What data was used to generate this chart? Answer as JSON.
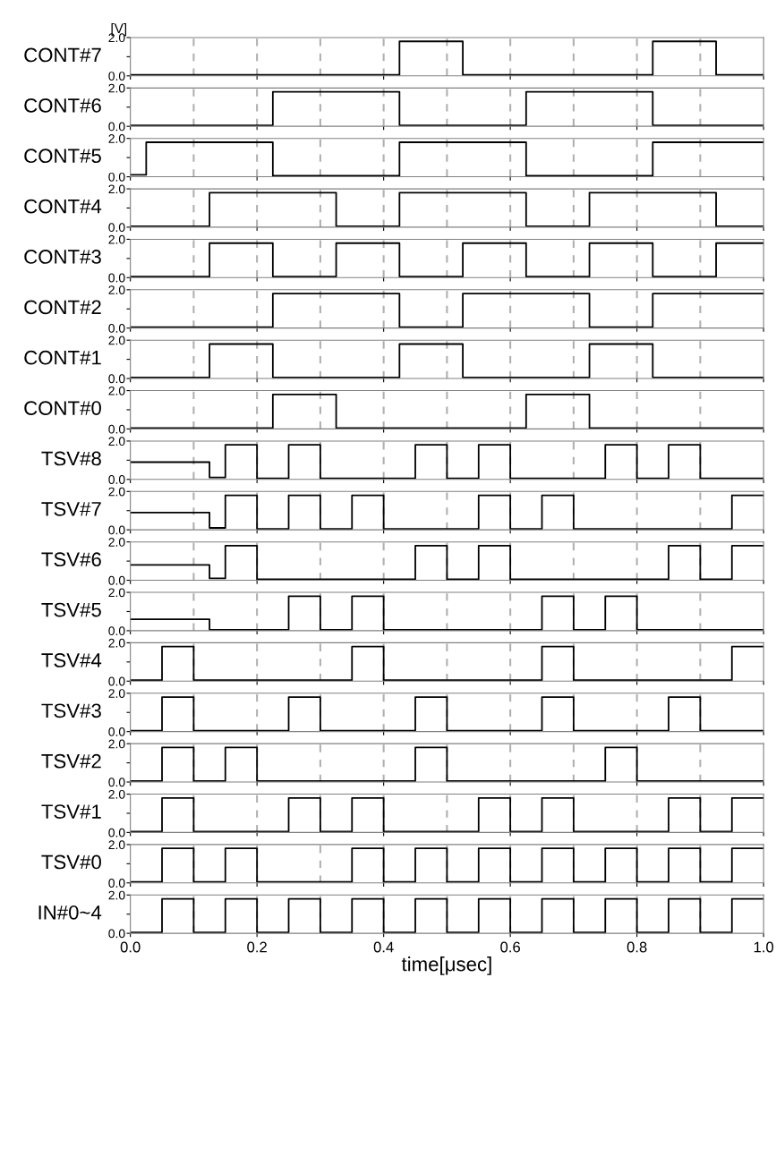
{
  "chart_data": [
    {
      "type": "step",
      "ylabel": "CONT#7",
      "annotations": [
        "[V]"
      ],
      "x": [
        0,
        0.425,
        0.525,
        0.825,
        0.925,
        1.0
      ],
      "values": [
        0.05,
        1.8,
        0.05,
        1.8,
        0.05,
        0.05
      ],
      "color": "#000000",
      "xlim": [
        0,
        1
      ],
      "xticks": [
        0,
        0.2,
        0.4,
        0.6,
        0.8,
        1.0
      ],
      "ylim": [
        0,
        2
      ],
      "yticks": [
        {
          "value": 0,
          "label": "0.0"
        },
        {
          "value": 1,
          "label": null
        },
        {
          "value": 2,
          "label": "2.0"
        }
      ],
      "tick_labels": "y",
      "ref_lines": [
        {
          "axis": "x",
          "value": 0.1,
          "color": "#b0b0b0",
          "line_style": "dashed"
        },
        {
          "axis": "x",
          "value": 0.2,
          "color": "#b0b0b0",
          "line_style": "dashed"
        },
        {
          "axis": "x",
          "value": 0.3,
          "color": "#b0b0b0",
          "line_style": "dashed"
        },
        {
          "axis": "x",
          "value": 0.4,
          "color": "#b0b0b0",
          "line_style": "dashed"
        },
        {
          "axis": "x",
          "value": 0.5,
          "color": "#b0b0b0",
          "line_style": "dashed"
        },
        {
          "axis": "x",
          "value": 0.6,
          "color": "#b0b0b0",
          "line_style": "dashed"
        },
        {
          "axis": "x",
          "value": 0.7,
          "color": "#b0b0b0",
          "line_style": "dashed"
        },
        {
          "axis": "x",
          "value": 0.8,
          "color": "#b0b0b0",
          "line_style": "dashed"
        },
        {
          "axis": "x",
          "value": 0.9,
          "color": "#b0b0b0",
          "line_style": "dashed"
        }
      ]
    },
    {
      "type": "step",
      "ylabel": "CONT#6",
      "x": [
        0,
        0.225,
        0.425,
        0.625,
        0.825,
        1.0
      ],
      "values": [
        0.05,
        1.8,
        0.05,
        1.8,
        0.05,
        0.05
      ],
      "color": "#000000",
      "xlim": [
        0,
        1
      ],
      "xticks": [
        0,
        0.2,
        0.4,
        0.6,
        0.8,
        1.0
      ],
      "ylim": [
        0,
        2
      ],
      "yticks": [
        {
          "value": 0,
          "label": "0.0"
        },
        {
          "value": 1,
          "label": null
        },
        {
          "value": 2,
          "label": "2.0"
        }
      ],
      "tick_labels": "y",
      "ref_lines": [
        {
          "axis": "x",
          "value": 0.1,
          "color": "#b0b0b0",
          "line_style": "dashed"
        },
        {
          "axis": "x",
          "value": 0.2,
          "color": "#b0b0b0",
          "line_style": "dashed"
        },
        {
          "axis": "x",
          "value": 0.3,
          "color": "#b0b0b0",
          "line_style": "dashed"
        },
        {
          "axis": "x",
          "value": 0.4,
          "color": "#b0b0b0",
          "line_style": "dashed"
        },
        {
          "axis": "x",
          "value": 0.5,
          "color": "#b0b0b0",
          "line_style": "dashed"
        },
        {
          "axis": "x",
          "value": 0.6,
          "color": "#b0b0b0",
          "line_style": "dashed"
        },
        {
          "axis": "x",
          "value": 0.7,
          "color": "#b0b0b0",
          "line_style": "dashed"
        },
        {
          "axis": "x",
          "value": 0.8,
          "color": "#b0b0b0",
          "line_style": "dashed"
        },
        {
          "axis": "x",
          "value": 0.9,
          "color": "#b0b0b0",
          "line_style": "dashed"
        }
      ]
    },
    {
      "type": "step",
      "ylabel": "CONT#5",
      "x": [
        0,
        0.025,
        0.225,
        0.425,
        0.625,
        0.825,
        1.0
      ],
      "values": [
        0.1,
        1.8,
        0.05,
        1.8,
        0.05,
        1.8,
        1.8
      ],
      "color": "#000000",
      "xlim": [
        0,
        1
      ],
      "xticks": [
        0,
        0.2,
        0.4,
        0.6,
        0.8,
        1.0
      ],
      "ylim": [
        0,
        2
      ],
      "yticks": [
        {
          "value": 0,
          "label": "0.0"
        },
        {
          "value": 1,
          "label": null
        },
        {
          "value": 2,
          "label": "2.0"
        }
      ],
      "tick_labels": "y",
      "ref_lines": [
        {
          "axis": "x",
          "value": 0.1,
          "color": "#b0b0b0",
          "line_style": "dashed"
        },
        {
          "axis": "x",
          "value": 0.2,
          "color": "#b0b0b0",
          "line_style": "dashed"
        },
        {
          "axis": "x",
          "value": 0.3,
          "color": "#b0b0b0",
          "line_style": "dashed"
        },
        {
          "axis": "x",
          "value": 0.4,
          "color": "#b0b0b0",
          "line_style": "dashed"
        },
        {
          "axis": "x",
          "value": 0.5,
          "color": "#b0b0b0",
          "line_style": "dashed"
        },
        {
          "axis": "x",
          "value": 0.6,
          "color": "#b0b0b0",
          "line_style": "dashed"
        },
        {
          "axis": "x",
          "value": 0.7,
          "color": "#b0b0b0",
          "line_style": "dashed"
        },
        {
          "axis": "x",
          "value": 0.8,
          "color": "#b0b0b0",
          "line_style": "dashed"
        },
        {
          "axis": "x",
          "value": 0.9,
          "color": "#b0b0b0",
          "line_style": "dashed"
        }
      ]
    },
    {
      "type": "step",
      "ylabel": "CONT#4",
      "x": [
        0,
        0.125,
        0.325,
        0.425,
        0.625,
        0.725,
        0.925,
        1.0
      ],
      "values": [
        0.05,
        1.8,
        0.05,
        1.8,
        0.05,
        1.8,
        0.05,
        0.05
      ],
      "color": "#000000",
      "xlim": [
        0,
        1
      ],
      "xticks": [
        0,
        0.2,
        0.4,
        0.6,
        0.8,
        1.0
      ],
      "ylim": [
        0,
        2
      ],
      "yticks": [
        {
          "value": 0,
          "label": "0.0"
        },
        {
          "value": 1,
          "label": null
        },
        {
          "value": 2,
          "label": "2.0"
        }
      ],
      "tick_labels": "y",
      "ref_lines": [
        {
          "axis": "x",
          "value": 0.1,
          "color": "#b0b0b0",
          "line_style": "dashed"
        },
        {
          "axis": "x",
          "value": 0.2,
          "color": "#b0b0b0",
          "line_style": "dashed"
        },
        {
          "axis": "x",
          "value": 0.3,
          "color": "#b0b0b0",
          "line_style": "dashed"
        },
        {
          "axis": "x",
          "value": 0.4,
          "color": "#b0b0b0",
          "line_style": "dashed"
        },
        {
          "axis": "x",
          "value": 0.5,
          "color": "#b0b0b0",
          "line_style": "dashed"
        },
        {
          "axis": "x",
          "value": 0.6,
          "color": "#b0b0b0",
          "line_style": "dashed"
        },
        {
          "axis": "x",
          "value": 0.7,
          "color": "#b0b0b0",
          "line_style": "dashed"
        },
        {
          "axis": "x",
          "value": 0.8,
          "color": "#b0b0b0",
          "line_style": "dashed"
        },
        {
          "axis": "x",
          "value": 0.9,
          "color": "#b0b0b0",
          "line_style": "dashed"
        }
      ]
    },
    {
      "type": "step",
      "ylabel": "CONT#3",
      "x": [
        0,
        0.125,
        0.225,
        0.325,
        0.425,
        0.525,
        0.625,
        0.725,
        0.825,
        0.925,
        1.0
      ],
      "values": [
        0.05,
        1.8,
        0.05,
        1.8,
        0.05,
        1.8,
        0.05,
        1.8,
        0.05,
        1.8,
        1.8
      ],
      "color": "#000000",
      "xlim": [
        0,
        1
      ],
      "xticks": [
        0,
        0.2,
        0.4,
        0.6,
        0.8,
        1.0
      ],
      "ylim": [
        0,
        2
      ],
      "yticks": [
        {
          "value": 0,
          "label": "0.0"
        },
        {
          "value": 1,
          "label": null
        },
        {
          "value": 2,
          "label": "2.0"
        }
      ],
      "tick_labels": "y",
      "ref_lines": [
        {
          "axis": "x",
          "value": 0.1,
          "color": "#b0b0b0",
          "line_style": "dashed"
        },
        {
          "axis": "x",
          "value": 0.2,
          "color": "#b0b0b0",
          "line_style": "dashed"
        },
        {
          "axis": "x",
          "value": 0.3,
          "color": "#b0b0b0",
          "line_style": "dashed"
        },
        {
          "axis": "x",
          "value": 0.4,
          "color": "#b0b0b0",
          "line_style": "dashed"
        },
        {
          "axis": "x",
          "value": 0.5,
          "color": "#b0b0b0",
          "line_style": "dashed"
        },
        {
          "axis": "x",
          "value": 0.6,
          "color": "#b0b0b0",
          "line_style": "dashed"
        },
        {
          "axis": "x",
          "value": 0.7,
          "color": "#b0b0b0",
          "line_style": "dashed"
        },
        {
          "axis": "x",
          "value": 0.8,
          "color": "#b0b0b0",
          "line_style": "dashed"
        },
        {
          "axis": "x",
          "value": 0.9,
          "color": "#b0b0b0",
          "line_style": "dashed"
        }
      ]
    },
    {
      "type": "step",
      "ylabel": "CONT#2",
      "x": [
        0,
        0.225,
        0.425,
        0.525,
        0.725,
        0.825,
        1.0
      ],
      "values": [
        0.05,
        1.8,
        0.05,
        1.8,
        0.05,
        1.8,
        1.8
      ],
      "color": "#000000",
      "xlim": [
        0,
        1
      ],
      "xticks": [
        0,
        0.2,
        0.4,
        0.6,
        0.8,
        1.0
      ],
      "ylim": [
        0,
        2
      ],
      "yticks": [
        {
          "value": 0,
          "label": "0.0"
        },
        {
          "value": 1,
          "label": null
        },
        {
          "value": 2,
          "label": "2.0"
        }
      ],
      "tick_labels": "y",
      "ref_lines": [
        {
          "axis": "x",
          "value": 0.1,
          "color": "#b0b0b0",
          "line_style": "dashed"
        },
        {
          "axis": "x",
          "value": 0.2,
          "color": "#b0b0b0",
          "line_style": "dashed"
        },
        {
          "axis": "x",
          "value": 0.3,
          "color": "#b0b0b0",
          "line_style": "dashed"
        },
        {
          "axis": "x",
          "value": 0.4,
          "color": "#b0b0b0",
          "line_style": "dashed"
        },
        {
          "axis": "x",
          "value": 0.5,
          "color": "#b0b0b0",
          "line_style": "dashed"
        },
        {
          "axis": "x",
          "value": 0.6,
          "color": "#b0b0b0",
          "line_style": "dashed"
        },
        {
          "axis": "x",
          "value": 0.7,
          "color": "#b0b0b0",
          "line_style": "dashed"
        },
        {
          "axis": "x",
          "value": 0.8,
          "color": "#b0b0b0",
          "line_style": "dashed"
        },
        {
          "axis": "x",
          "value": 0.9,
          "color": "#b0b0b0",
          "line_style": "dashed"
        }
      ]
    },
    {
      "type": "step",
      "ylabel": "CONT#1",
      "x": [
        0,
        0.125,
        0.225,
        0.425,
        0.525,
        0.725,
        0.825,
        1.0
      ],
      "values": [
        0.05,
        1.8,
        0.05,
        1.8,
        0.05,
        1.8,
        0.05,
        0.05
      ],
      "color": "#000000",
      "xlim": [
        0,
        1
      ],
      "xticks": [
        0,
        0.2,
        0.4,
        0.6,
        0.8,
        1.0
      ],
      "ylim": [
        0,
        2
      ],
      "yticks": [
        {
          "value": 0,
          "label": "0.0"
        },
        {
          "value": 1,
          "label": null
        },
        {
          "value": 2,
          "label": "2.0"
        }
      ],
      "tick_labels": "y",
      "ref_lines": [
        {
          "axis": "x",
          "value": 0.1,
          "color": "#b0b0b0",
          "line_style": "dashed"
        },
        {
          "axis": "x",
          "value": 0.2,
          "color": "#b0b0b0",
          "line_style": "dashed"
        },
        {
          "axis": "x",
          "value": 0.3,
          "color": "#b0b0b0",
          "line_style": "dashed"
        },
        {
          "axis": "x",
          "value": 0.4,
          "color": "#b0b0b0",
          "line_style": "dashed"
        },
        {
          "axis": "x",
          "value": 0.5,
          "color": "#b0b0b0",
          "line_style": "dashed"
        },
        {
          "axis": "x",
          "value": 0.6,
          "color": "#b0b0b0",
          "line_style": "dashed"
        },
        {
          "axis": "x",
          "value": 0.7,
          "color": "#b0b0b0",
          "line_style": "dashed"
        },
        {
          "axis": "x",
          "value": 0.8,
          "color": "#b0b0b0",
          "line_style": "dashed"
        },
        {
          "axis": "x",
          "value": 0.9,
          "color": "#b0b0b0",
          "line_style": "dashed"
        }
      ]
    },
    {
      "type": "step",
      "ylabel": "CONT#0",
      "x": [
        0,
        0.225,
        0.325,
        0.625,
        0.725,
        1.0
      ],
      "values": [
        0.05,
        1.8,
        0.05,
        1.8,
        0.05,
        0.05
      ],
      "color": "#000000",
      "xlim": [
        0,
        1
      ],
      "xticks": [
        0,
        0.2,
        0.4,
        0.6,
        0.8,
        1.0
      ],
      "ylim": [
        0,
        2
      ],
      "yticks": [
        {
          "value": 0,
          "label": "0.0"
        },
        {
          "value": 1,
          "label": null
        },
        {
          "value": 2,
          "label": "2.0"
        }
      ],
      "tick_labels": "y",
      "ref_lines": [
        {
          "axis": "x",
          "value": 0.1,
          "color": "#b0b0b0",
          "line_style": "dashed"
        },
        {
          "axis": "x",
          "value": 0.2,
          "color": "#b0b0b0",
          "line_style": "dashed"
        },
        {
          "axis": "x",
          "value": 0.3,
          "color": "#b0b0b0",
          "line_style": "dashed"
        },
        {
          "axis": "x",
          "value": 0.4,
          "color": "#b0b0b0",
          "line_style": "dashed"
        },
        {
          "axis": "x",
          "value": 0.5,
          "color": "#b0b0b0",
          "line_style": "dashed"
        },
        {
          "axis": "x",
          "value": 0.6,
          "color": "#b0b0b0",
          "line_style": "dashed"
        },
        {
          "axis": "x",
          "value": 0.7,
          "color": "#b0b0b0",
          "line_style": "dashed"
        },
        {
          "axis": "x",
          "value": 0.8,
          "color": "#b0b0b0",
          "line_style": "dashed"
        },
        {
          "axis": "x",
          "value": 0.9,
          "color": "#b0b0b0",
          "line_style": "dashed"
        }
      ]
    },
    {
      "type": "step",
      "ylabel": "TSV#8",
      "x": [
        0,
        0.125,
        0.15,
        0.2,
        0.25,
        0.3,
        0.45,
        0.5,
        0.55,
        0.6,
        0.75,
        0.8,
        0.85,
        0.9,
        1.0
      ],
      "values": [
        0.9,
        0.1,
        1.8,
        0.05,
        1.8,
        0.05,
        1.8,
        0.05,
        1.8,
        0.05,
        1.8,
        0.05,
        1.8,
        0.05,
        0.05
      ],
      "color": "#000000",
      "xlim": [
        0,
        1
      ],
      "xticks": [
        0,
        0.2,
        0.4,
        0.6,
        0.8,
        1.0
      ],
      "ylim": [
        0,
        2
      ],
      "yticks": [
        {
          "value": 0,
          "label": "0.0"
        },
        {
          "value": 1,
          "label": null
        },
        {
          "value": 2,
          "label": "2.0"
        }
      ],
      "tick_labels": "y",
      "ref_lines": [
        {
          "axis": "x",
          "value": 0.1,
          "color": "#b0b0b0",
          "line_style": "dashed"
        },
        {
          "axis": "x",
          "value": 0.2,
          "color": "#b0b0b0",
          "line_style": "dashed"
        },
        {
          "axis": "x",
          "value": 0.3,
          "color": "#b0b0b0",
          "line_style": "dashed"
        },
        {
          "axis": "x",
          "value": 0.4,
          "color": "#b0b0b0",
          "line_style": "dashed"
        },
        {
          "axis": "x",
          "value": 0.5,
          "color": "#b0b0b0",
          "line_style": "dashed"
        },
        {
          "axis": "x",
          "value": 0.6,
          "color": "#b0b0b0",
          "line_style": "dashed"
        },
        {
          "axis": "x",
          "value": 0.7,
          "color": "#b0b0b0",
          "line_style": "dashed"
        },
        {
          "axis": "x",
          "value": 0.8,
          "color": "#b0b0b0",
          "line_style": "dashed"
        },
        {
          "axis": "x",
          "value": 0.9,
          "color": "#b0b0b0",
          "line_style": "dashed"
        }
      ]
    },
    {
      "type": "step",
      "ylabel": "TSV#7",
      "x": [
        0,
        0.125,
        0.15,
        0.2,
        0.25,
        0.3,
        0.35,
        0.4,
        0.55,
        0.6,
        0.65,
        0.7,
        0.95,
        1.0
      ],
      "values": [
        0.9,
        0.1,
        1.8,
        0.05,
        1.8,
        0.05,
        1.8,
        0.05,
        1.8,
        0.05,
        1.8,
        0.05,
        1.8,
        1.8
      ],
      "color": "#000000",
      "xlim": [
        0,
        1
      ],
      "xticks": [
        0,
        0.2,
        0.4,
        0.6,
        0.8,
        1.0
      ],
      "ylim": [
        0,
        2
      ],
      "yticks": [
        {
          "value": 0,
          "label": "0.0"
        },
        {
          "value": 1,
          "label": null
        },
        {
          "value": 2,
          "label": "2.0"
        }
      ],
      "tick_labels": "y",
      "ref_lines": [
        {
          "axis": "x",
          "value": 0.1,
          "color": "#b0b0b0",
          "line_style": "dashed"
        },
        {
          "axis": "x",
          "value": 0.2,
          "color": "#b0b0b0",
          "line_style": "dashed"
        },
        {
          "axis": "x",
          "value": 0.3,
          "color": "#b0b0b0",
          "line_style": "dashed"
        },
        {
          "axis": "x",
          "value": 0.4,
          "color": "#b0b0b0",
          "line_style": "dashed"
        },
        {
          "axis": "x",
          "value": 0.5,
          "color": "#b0b0b0",
          "line_style": "dashed"
        },
        {
          "axis": "x",
          "value": 0.6,
          "color": "#b0b0b0",
          "line_style": "dashed"
        },
        {
          "axis": "x",
          "value": 0.7,
          "color": "#b0b0b0",
          "line_style": "dashed"
        },
        {
          "axis": "x",
          "value": 0.8,
          "color": "#b0b0b0",
          "line_style": "dashed"
        },
        {
          "axis": "x",
          "value": 0.9,
          "color": "#b0b0b0",
          "line_style": "dashed"
        }
      ]
    },
    {
      "type": "step",
      "ylabel": "TSV#6",
      "x": [
        0,
        0.125,
        0.15,
        0.2,
        0.45,
        0.5,
        0.55,
        0.6,
        0.85,
        0.9,
        0.95,
        1.0
      ],
      "values": [
        0.8,
        0.1,
        1.8,
        0.05,
        1.8,
        0.05,
        1.8,
        0.05,
        1.8,
        0.05,
        1.8,
        1.8
      ],
      "color": "#000000",
      "xlim": [
        0,
        1
      ],
      "xticks": [
        0,
        0.2,
        0.4,
        0.6,
        0.8,
        1.0
      ],
      "ylim": [
        0,
        2
      ],
      "yticks": [
        {
          "value": 0,
          "label": "0.0"
        },
        {
          "value": 1,
          "label": null
        },
        {
          "value": 2,
          "label": "2.0"
        }
      ],
      "tick_labels": "y",
      "ref_lines": [
        {
          "axis": "x",
          "value": 0.1,
          "color": "#b0b0b0",
          "line_style": "dashed"
        },
        {
          "axis": "x",
          "value": 0.2,
          "color": "#b0b0b0",
          "line_style": "dashed"
        },
        {
          "axis": "x",
          "value": 0.3,
          "color": "#b0b0b0",
          "line_style": "dashed"
        },
        {
          "axis": "x",
          "value": 0.4,
          "color": "#b0b0b0",
          "line_style": "dashed"
        },
        {
          "axis": "x",
          "value": 0.5,
          "color": "#b0b0b0",
          "line_style": "dashed"
        },
        {
          "axis": "x",
          "value": 0.6,
          "color": "#b0b0b0",
          "line_style": "dashed"
        },
        {
          "axis": "x",
          "value": 0.7,
          "color": "#b0b0b0",
          "line_style": "dashed"
        },
        {
          "axis": "x",
          "value": 0.8,
          "color": "#b0b0b0",
          "line_style": "dashed"
        },
        {
          "axis": "x",
          "value": 0.9,
          "color": "#b0b0b0",
          "line_style": "dashed"
        }
      ]
    },
    {
      "type": "step",
      "ylabel": "TSV#5",
      "x": [
        0,
        0.125,
        0.25,
        0.3,
        0.35,
        0.4,
        0.65,
        0.7,
        0.75,
        0.8,
        1.0
      ],
      "values": [
        0.6,
        0.05,
        1.8,
        0.05,
        1.8,
        0.05,
        1.8,
        0.05,
        1.8,
        0.05,
        0.05
      ],
      "color": "#000000",
      "xlim": [
        0,
        1
      ],
      "xticks": [
        0,
        0.2,
        0.4,
        0.6,
        0.8,
        1.0
      ],
      "ylim": [
        0,
        2
      ],
      "yticks": [
        {
          "value": 0,
          "label": "0.0"
        },
        {
          "value": 1,
          "label": null
        },
        {
          "value": 2,
          "label": "2.0"
        }
      ],
      "tick_labels": "y",
      "ref_lines": [
        {
          "axis": "x",
          "value": 0.1,
          "color": "#b0b0b0",
          "line_style": "dashed"
        },
        {
          "axis": "x",
          "value": 0.2,
          "color": "#b0b0b0",
          "line_style": "dashed"
        },
        {
          "axis": "x",
          "value": 0.3,
          "color": "#b0b0b0",
          "line_style": "dashed"
        },
        {
          "axis": "x",
          "value": 0.4,
          "color": "#b0b0b0",
          "line_style": "dashed"
        },
        {
          "axis": "x",
          "value": 0.5,
          "color": "#b0b0b0",
          "line_style": "dashed"
        },
        {
          "axis": "x",
          "value": 0.6,
          "color": "#b0b0b0",
          "line_style": "dashed"
        },
        {
          "axis": "x",
          "value": 0.7,
          "color": "#b0b0b0",
          "line_style": "dashed"
        },
        {
          "axis": "x",
          "value": 0.8,
          "color": "#b0b0b0",
          "line_style": "dashed"
        },
        {
          "axis": "x",
          "value": 0.9,
          "color": "#b0b0b0",
          "line_style": "dashed"
        }
      ]
    },
    {
      "type": "step",
      "ylabel": "TSV#4",
      "x": [
        0,
        0.05,
        0.1,
        0.35,
        0.4,
        0.65,
        0.7,
        0.95,
        1.0
      ],
      "values": [
        0.05,
        1.8,
        0.05,
        1.8,
        0.05,
        1.8,
        0.05,
        1.8,
        1.8
      ],
      "color": "#000000",
      "xlim": [
        0,
        1
      ],
      "xticks": [
        0,
        0.2,
        0.4,
        0.6,
        0.8,
        1.0
      ],
      "ylim": [
        0,
        2
      ],
      "yticks": [
        {
          "value": 0,
          "label": "0.0"
        },
        {
          "value": 1,
          "label": null
        },
        {
          "value": 2,
          "label": "2.0"
        }
      ],
      "tick_labels": "y",
      "ref_lines": [
        {
          "axis": "x",
          "value": 0.1,
          "color": "#b0b0b0",
          "line_style": "dashed"
        },
        {
          "axis": "x",
          "value": 0.2,
          "color": "#b0b0b0",
          "line_style": "dashed"
        },
        {
          "axis": "x",
          "value": 0.3,
          "color": "#b0b0b0",
          "line_style": "dashed"
        },
        {
          "axis": "x",
          "value": 0.4,
          "color": "#b0b0b0",
          "line_style": "dashed"
        },
        {
          "axis": "x",
          "value": 0.5,
          "color": "#b0b0b0",
          "line_style": "dashed"
        },
        {
          "axis": "x",
          "value": 0.6,
          "color": "#b0b0b0",
          "line_style": "dashed"
        },
        {
          "axis": "x",
          "value": 0.7,
          "color": "#b0b0b0",
          "line_style": "dashed"
        },
        {
          "axis": "x",
          "value": 0.8,
          "color": "#b0b0b0",
          "line_style": "dashed"
        },
        {
          "axis": "x",
          "value": 0.9,
          "color": "#b0b0b0",
          "line_style": "dashed"
        }
      ]
    },
    {
      "type": "step",
      "ylabel": "TSV#3",
      "x": [
        0,
        0.05,
        0.1,
        0.25,
        0.3,
        0.45,
        0.5,
        0.65,
        0.7,
        0.85,
        0.9,
        1.0
      ],
      "values": [
        0.05,
        1.8,
        0.05,
        1.8,
        0.05,
        1.8,
        0.05,
        1.8,
        0.05,
        1.8,
        0.05,
        0.05
      ],
      "color": "#000000",
      "xlim": [
        0,
        1
      ],
      "xticks": [
        0,
        0.2,
        0.4,
        0.6,
        0.8,
        1.0
      ],
      "ylim": [
        0,
        2
      ],
      "yticks": [
        {
          "value": 0,
          "label": "0.0"
        },
        {
          "value": 1,
          "label": null
        },
        {
          "value": 2,
          "label": "2.0"
        }
      ],
      "tick_labels": "y",
      "ref_lines": [
        {
          "axis": "x",
          "value": 0.1,
          "color": "#b0b0b0",
          "line_style": "dashed"
        },
        {
          "axis": "x",
          "value": 0.2,
          "color": "#b0b0b0",
          "line_style": "dashed"
        },
        {
          "axis": "x",
          "value": 0.3,
          "color": "#b0b0b0",
          "line_style": "dashed"
        },
        {
          "axis": "x",
          "value": 0.4,
          "color": "#b0b0b0",
          "line_style": "dashed"
        },
        {
          "axis": "x",
          "value": 0.5,
          "color": "#b0b0b0",
          "line_style": "dashed"
        },
        {
          "axis": "x",
          "value": 0.6,
          "color": "#b0b0b0",
          "line_style": "dashed"
        },
        {
          "axis": "x",
          "value": 0.7,
          "color": "#b0b0b0",
          "line_style": "dashed"
        },
        {
          "axis": "x",
          "value": 0.8,
          "color": "#b0b0b0",
          "line_style": "dashed"
        },
        {
          "axis": "x",
          "value": 0.9,
          "color": "#b0b0b0",
          "line_style": "dashed"
        }
      ]
    },
    {
      "type": "step",
      "ylabel": "TSV#2",
      "x": [
        0,
        0.05,
        0.1,
        0.15,
        0.2,
        0.45,
        0.5,
        0.75,
        0.8,
        1.0
      ],
      "values": [
        0.05,
        1.8,
        0.05,
        1.8,
        0.05,
        1.8,
        0.05,
        1.8,
        0.05,
        0.05
      ],
      "color": "#000000",
      "xlim": [
        0,
        1
      ],
      "xticks": [
        0,
        0.2,
        0.4,
        0.6,
        0.8,
        1.0
      ],
      "ylim": [
        0,
        2
      ],
      "yticks": [
        {
          "value": 0,
          "label": "0.0"
        },
        {
          "value": 1,
          "label": null
        },
        {
          "value": 2,
          "label": "2.0"
        }
      ],
      "tick_labels": "y",
      "ref_lines": [
        {
          "axis": "x",
          "value": 0.1,
          "color": "#b0b0b0",
          "line_style": "dashed"
        },
        {
          "axis": "x",
          "value": 0.2,
          "color": "#b0b0b0",
          "line_style": "dashed"
        },
        {
          "axis": "x",
          "value": 0.3,
          "color": "#b0b0b0",
          "line_style": "dashed"
        },
        {
          "axis": "x",
          "value": 0.4,
          "color": "#b0b0b0",
          "line_style": "dashed"
        },
        {
          "axis": "x",
          "value": 0.5,
          "color": "#b0b0b0",
          "line_style": "dashed"
        },
        {
          "axis": "x",
          "value": 0.6,
          "color": "#b0b0b0",
          "line_style": "dashed"
        },
        {
          "axis": "x",
          "value": 0.7,
          "color": "#b0b0b0",
          "line_style": "dashed"
        },
        {
          "axis": "x",
          "value": 0.8,
          "color": "#b0b0b0",
          "line_style": "dashed"
        },
        {
          "axis": "x",
          "value": 0.9,
          "color": "#b0b0b0",
          "line_style": "dashed"
        }
      ]
    },
    {
      "type": "step",
      "ylabel": "TSV#1",
      "x": [
        0,
        0.05,
        0.1,
        0.25,
        0.3,
        0.35,
        0.4,
        0.55,
        0.6,
        0.65,
        0.7,
        0.85,
        0.9,
        0.95,
        1.0
      ],
      "values": [
        0.05,
        1.8,
        0.05,
        1.8,
        0.05,
        1.8,
        0.05,
        1.8,
        0.05,
        1.8,
        0.05,
        1.8,
        0.05,
        1.8,
        1.8
      ],
      "color": "#000000",
      "xlim": [
        0,
        1
      ],
      "xticks": [
        0,
        0.2,
        0.4,
        0.6,
        0.8,
        1.0
      ],
      "ylim": [
        0,
        2
      ],
      "yticks": [
        {
          "value": 0,
          "label": "0.0"
        },
        {
          "value": 1,
          "label": null
        },
        {
          "value": 2,
          "label": "2.0"
        }
      ],
      "tick_labels": "y",
      "ref_lines": [
        {
          "axis": "x",
          "value": 0.1,
          "color": "#b0b0b0",
          "line_style": "dashed"
        },
        {
          "axis": "x",
          "value": 0.2,
          "color": "#b0b0b0",
          "line_style": "dashed"
        },
        {
          "axis": "x",
          "value": 0.3,
          "color": "#b0b0b0",
          "line_style": "dashed"
        },
        {
          "axis": "x",
          "value": 0.4,
          "color": "#b0b0b0",
          "line_style": "dashed"
        },
        {
          "axis": "x",
          "value": 0.5,
          "color": "#b0b0b0",
          "line_style": "dashed"
        },
        {
          "axis": "x",
          "value": 0.6,
          "color": "#b0b0b0",
          "line_style": "dashed"
        },
        {
          "axis": "x",
          "value": 0.7,
          "color": "#b0b0b0",
          "line_style": "dashed"
        },
        {
          "axis": "x",
          "value": 0.8,
          "color": "#b0b0b0",
          "line_style": "dashed"
        },
        {
          "axis": "x",
          "value": 0.9,
          "color": "#b0b0b0",
          "line_style": "dashed"
        }
      ]
    },
    {
      "type": "step",
      "ylabel": "TSV#0",
      "x": [
        0,
        0.05,
        0.1,
        0.15,
        0.2,
        0.35,
        0.4,
        0.45,
        0.5,
        0.55,
        0.6,
        0.65,
        0.7,
        0.75,
        0.8,
        0.85,
        0.9,
        0.95,
        1.0
      ],
      "values": [
        0.05,
        1.8,
        0.05,
        1.8,
        0.05,
        1.8,
        0.05,
        1.8,
        0.05,
        1.8,
        0.05,
        1.8,
        0.05,
        1.8,
        0.05,
        1.8,
        0.05,
        1.8,
        1.8
      ],
      "color": "#000000",
      "xlim": [
        0,
        1
      ],
      "xticks": [
        0,
        0.2,
        0.4,
        0.6,
        0.8,
        1.0
      ],
      "ylim": [
        0,
        2
      ],
      "yticks": [
        {
          "value": 0,
          "label": "0.0"
        },
        {
          "value": 1,
          "label": null
        },
        {
          "value": 2,
          "label": "2.0"
        }
      ],
      "tick_labels": "y",
      "ref_lines": [
        {
          "axis": "x",
          "value": 0.1,
          "color": "#b0b0b0",
          "line_style": "dashed"
        },
        {
          "axis": "x",
          "value": 0.2,
          "color": "#b0b0b0",
          "line_style": "dashed"
        },
        {
          "axis": "x",
          "value": 0.3,
          "color": "#b0b0b0",
          "line_style": "dashed"
        },
        {
          "axis": "x",
          "value": 0.4,
          "color": "#b0b0b0",
          "line_style": "dashed"
        },
        {
          "axis": "x",
          "value": 0.5,
          "color": "#b0b0b0",
          "line_style": "dashed"
        },
        {
          "axis": "x",
          "value": 0.6,
          "color": "#b0b0b0",
          "line_style": "dashed"
        },
        {
          "axis": "x",
          "value": 0.7,
          "color": "#b0b0b0",
          "line_style": "dashed"
        },
        {
          "axis": "x",
          "value": 0.8,
          "color": "#b0b0b0",
          "line_style": "dashed"
        },
        {
          "axis": "x",
          "value": 0.9,
          "color": "#b0b0b0",
          "line_style": "dashed"
        }
      ]
    },
    {
      "type": "step",
      "ylabel": "IN#0~4",
      "xlabel": "time[μsec]",
      "x": [
        0,
        0.05,
        0.1,
        0.15,
        0.2,
        0.25,
        0.3,
        0.35,
        0.4,
        0.45,
        0.5,
        0.55,
        0.6,
        0.65,
        0.7,
        0.75,
        0.8,
        0.85,
        0.9,
        0.95,
        1.0
      ],
      "values": [
        0.05,
        1.8,
        0.05,
        1.8,
        0.05,
        1.8,
        0.05,
        1.8,
        0.05,
        1.8,
        0.05,
        1.8,
        0.05,
        1.8,
        0.05,
        1.8,
        0.05,
        1.8,
        0.05,
        1.8,
        1.8
      ],
      "color": "#000000",
      "xlim": [
        0,
        1
      ],
      "xticks": [
        {
          "value": 0,
          "label": "0.0"
        },
        {
          "value": 0.2,
          "label": "0.2"
        },
        {
          "value": 0.4,
          "label": "0.4"
        },
        {
          "value": 0.6,
          "label": "0.6"
        },
        {
          "value": 0.8,
          "label": "0.8"
        },
        {
          "value": 1,
          "label": "1.0"
        }
      ],
      "ylim": [
        0,
        2
      ],
      "yticks": [
        {
          "value": 0,
          "label": "0.0"
        },
        {
          "value": 1,
          "label": null
        },
        {
          "value": 2,
          "label": "2.0"
        }
      ],
      "ref_lines": [
        {
          "axis": "x",
          "value": 0.1,
          "color": "#b0b0b0",
          "line_style": "dashed"
        },
        {
          "axis": "x",
          "value": 0.2,
          "color": "#b0b0b0",
          "line_style": "dashed"
        },
        {
          "axis": "x",
          "value": 0.3,
          "color": "#b0b0b0",
          "line_style": "dashed"
        },
        {
          "axis": "x",
          "value": 0.4,
          "color": "#b0b0b0",
          "line_style": "dashed"
        },
        {
          "axis": "x",
          "value": 0.5,
          "color": "#b0b0b0",
          "line_style": "dashed"
        },
        {
          "axis": "x",
          "value": 0.6,
          "color": "#b0b0b0",
          "line_style": "dashed"
        },
        {
          "axis": "x",
          "value": 0.7,
          "color": "#b0b0b0",
          "line_style": "dashed"
        },
        {
          "axis": "x",
          "value": 0.8,
          "color": "#b0b0b0",
          "line_style": "dashed"
        },
        {
          "axis": "x",
          "value": 0.9,
          "color": "#b0b0b0",
          "line_style": "dashed"
        }
      ]
    }
  ]
}
